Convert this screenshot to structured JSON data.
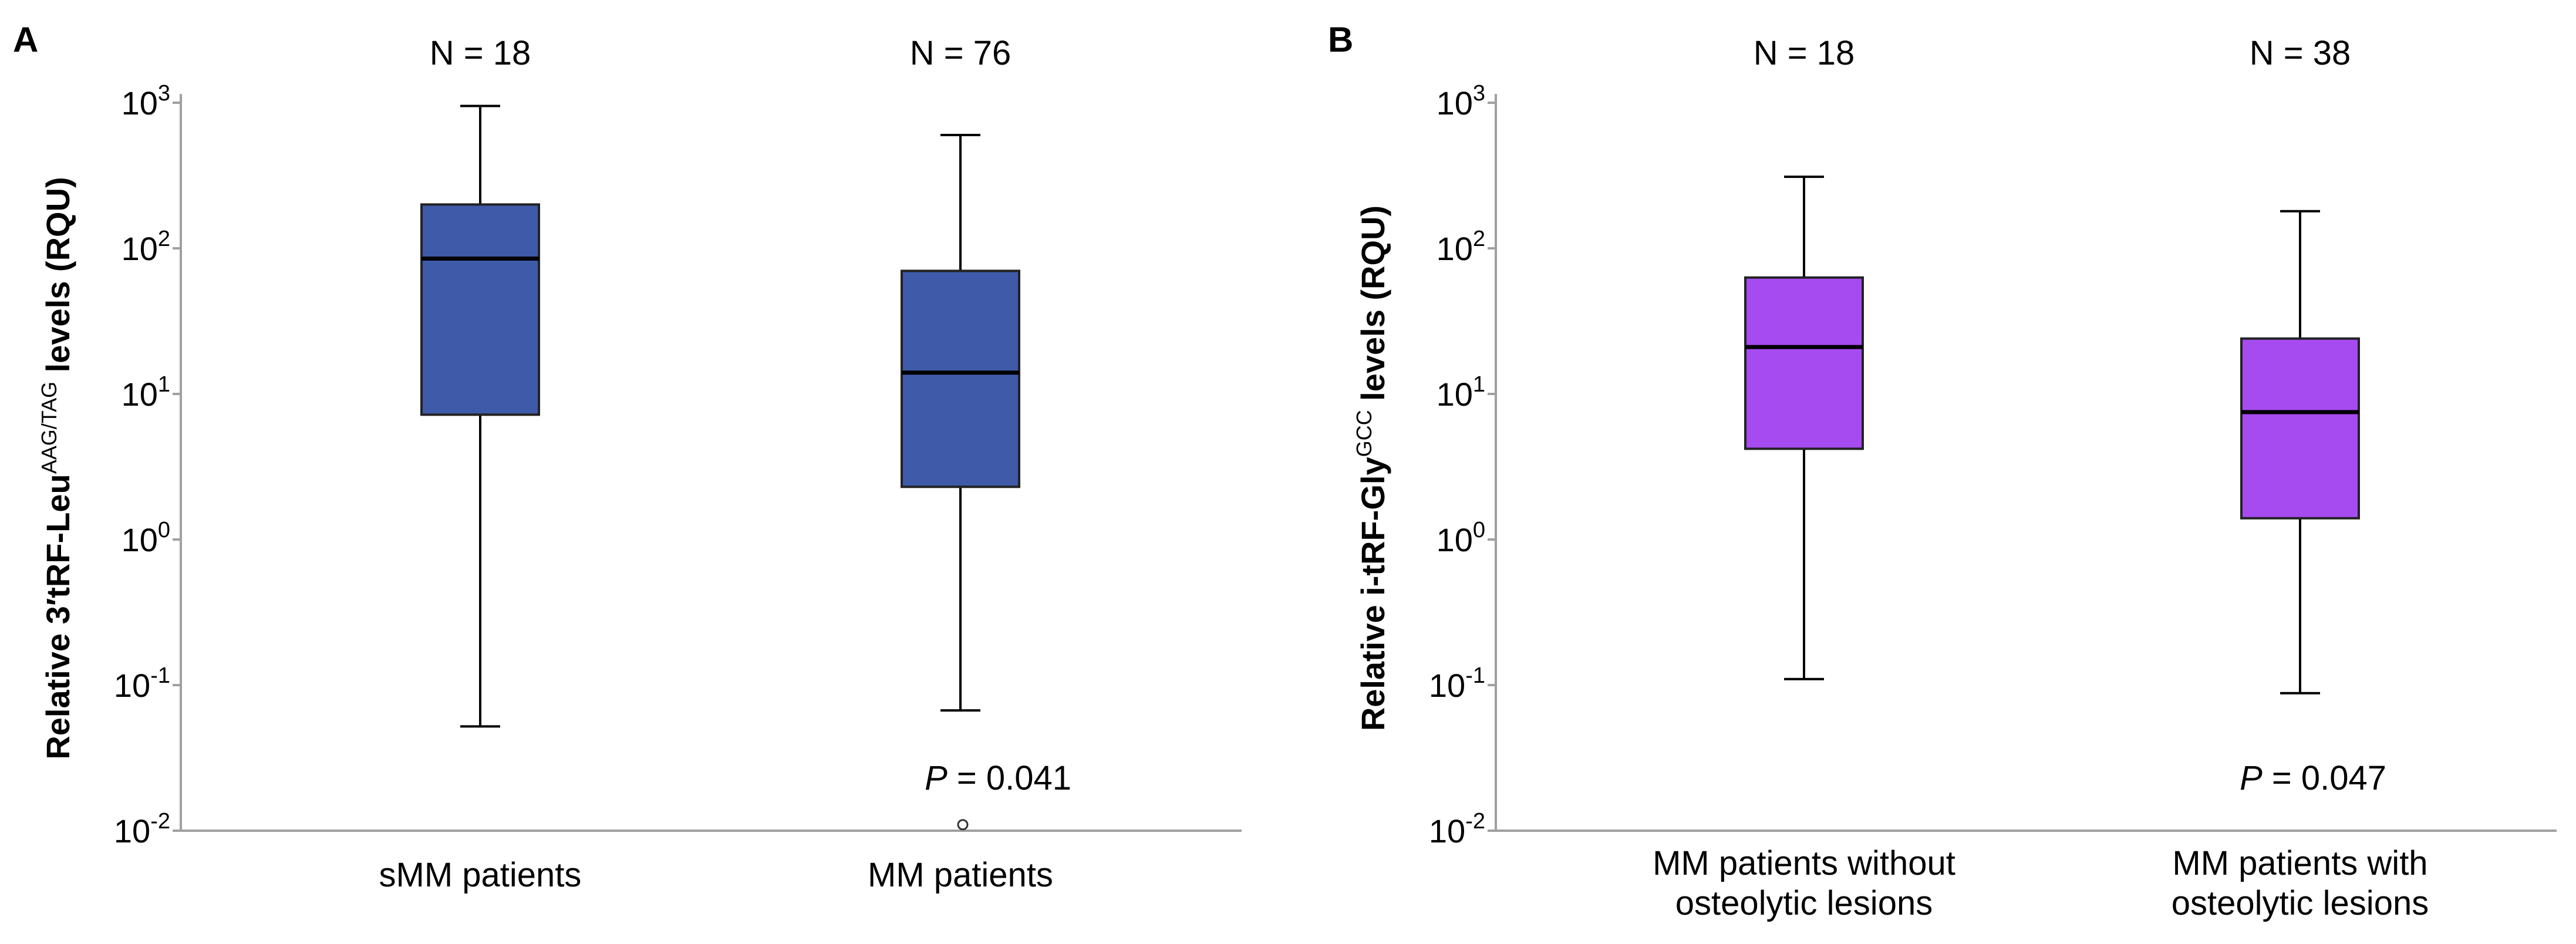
{
  "chart_data": [
    {
      "panel": "A",
      "type": "box",
      "scale": "log",
      "ylabel_prefix": "Relative 3′tRF-Leu",
      "ylabel_sup": "AAG/TAG",
      "ylabel_suffix": " levels (RQU)",
      "ylim": [
        0.01,
        1000
      ],
      "yticks": [
        {
          "base": "10",
          "exp": "3"
        },
        {
          "base": "10",
          "exp": "2"
        },
        {
          "base": "10",
          "exp": "1"
        },
        {
          "base": "10",
          "exp": "0"
        },
        {
          "base": "10",
          "exp": "-1"
        },
        {
          "base": "10",
          "exp": "-2"
        }
      ],
      "ytick_values": [
        1000,
        100,
        10,
        1,
        0.1,
        0.01
      ],
      "p_label": "P",
      "p_value": " = 0.041",
      "color": "#3f5aa8",
      "groups": [
        {
          "category": [
            "sMM patients"
          ],
          "n_label": "N = 18",
          "whisker_low": 0.052,
          "q1": 7.2,
          "median": 85,
          "q3": 200,
          "whisker_high": 950,
          "outliers": []
        },
        {
          "category": [
            "MM patients"
          ],
          "n_label": "N = 76",
          "whisker_low": 0.067,
          "q1": 2.3,
          "median": 14,
          "q3": 70,
          "whisker_high": 600,
          "outliers": [
            0.011
          ]
        }
      ]
    },
    {
      "panel": "B",
      "type": "box",
      "scale": "log",
      "ylabel_prefix": "Relative i-tRF-Gly",
      "ylabel_sup": "GCC",
      "ylabel_suffix": " levels (RQU)",
      "ylim": [
        0.01,
        1000
      ],
      "yticks": [
        {
          "base": "10",
          "exp": "3"
        },
        {
          "base": "10",
          "exp": "2"
        },
        {
          "base": "10",
          "exp": "1"
        },
        {
          "base": "10",
          "exp": "0"
        },
        {
          "base": "10",
          "exp": "-1"
        },
        {
          "base": "10",
          "exp": "-2"
        }
      ],
      "ytick_values": [
        1000,
        100,
        10,
        1,
        0.1,
        0.01
      ],
      "p_label": "P",
      "p_value": " = 0.047",
      "color": "#a64bf0",
      "groups": [
        {
          "category": [
            "MM patients without",
            "osteolytic lesions"
          ],
          "n_label": "N = 18",
          "whisker_low": 0.11,
          "q1": 4.2,
          "median": 21,
          "q3": 63,
          "whisker_high": 310,
          "outliers": []
        },
        {
          "category": [
            "MM patients with",
            "osteolytic lesions"
          ],
          "n_label": "N = 38",
          "whisker_low": 0.088,
          "q1": 1.4,
          "median": 7.5,
          "q3": 24,
          "whisker_high": 180,
          "outliers": []
        }
      ]
    }
  ]
}
